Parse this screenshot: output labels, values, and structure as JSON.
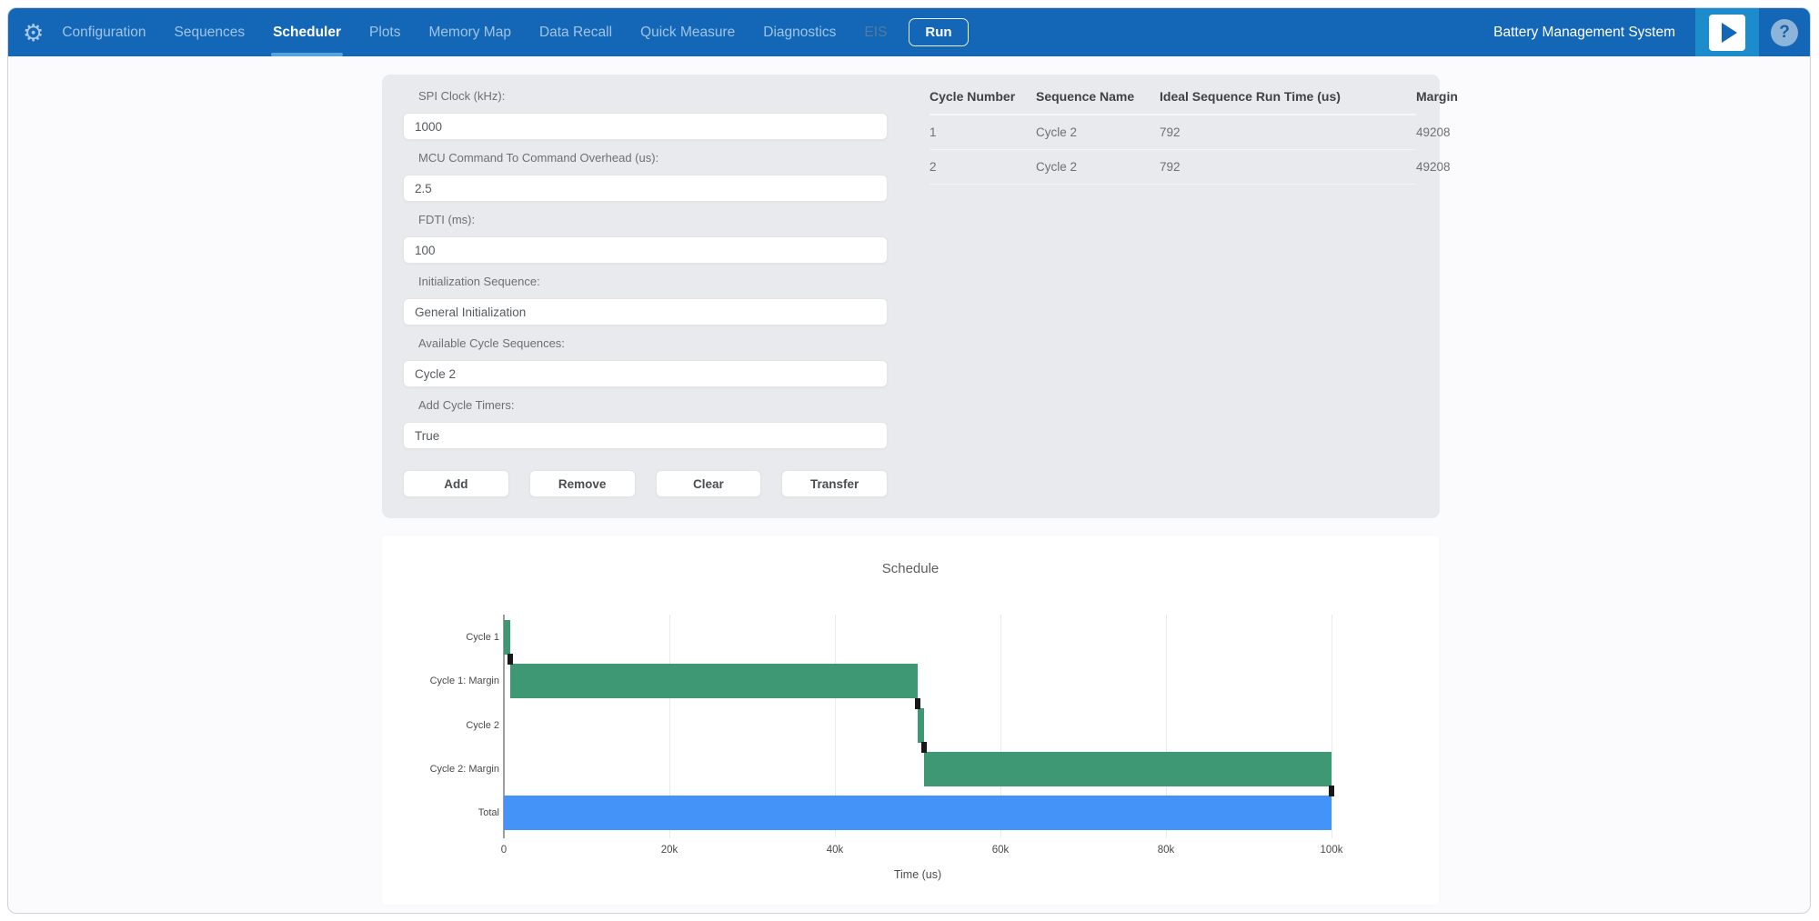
{
  "nav": {
    "items": [
      {
        "label": "Configuration",
        "state": "normal"
      },
      {
        "label": "Sequences",
        "state": "normal"
      },
      {
        "label": "Scheduler",
        "state": "active"
      },
      {
        "label": "Plots",
        "state": "normal"
      },
      {
        "label": "Memory Map",
        "state": "normal"
      },
      {
        "label": "Data Recall",
        "state": "normal"
      },
      {
        "label": "Quick Measure",
        "state": "normal"
      },
      {
        "label": "Diagnostics",
        "state": "normal"
      },
      {
        "label": "EIS",
        "state": "disabled"
      }
    ],
    "run_label": "Run",
    "app_title": "Battery Management System",
    "help_glyph": "?"
  },
  "form": {
    "fields": [
      {
        "name": "spi-clock",
        "label": "SPI Clock (kHz):",
        "value": "1000"
      },
      {
        "name": "mcu-command-overhead",
        "label": "MCU Command To Command Overhead (us):",
        "value": "2.5"
      },
      {
        "name": "fdti",
        "label": "FDTI (ms):",
        "value": "100"
      },
      {
        "name": "initialization-sequence",
        "label": "Initialization Sequence:",
        "value": "General Initialization"
      },
      {
        "name": "available-cycle-sequences",
        "label": "Available Cycle Sequences:",
        "value": "Cycle 2"
      },
      {
        "name": "add-cycle-timers",
        "label": "Add Cycle Timers:",
        "value": "True"
      }
    ],
    "buttons": [
      {
        "name": "add",
        "label": "Add"
      },
      {
        "name": "remove",
        "label": "Remove"
      },
      {
        "name": "clear",
        "label": "Clear"
      },
      {
        "name": "transfer",
        "label": "Transfer"
      }
    ]
  },
  "table": {
    "columns": [
      "Cycle Number",
      "Sequence Name",
      "Ideal Sequence Run Time (us)",
      "Margin"
    ],
    "rows": [
      [
        "1",
        "Cycle 2",
        "792",
        "49208"
      ],
      [
        "2",
        "Cycle 2",
        "792",
        "49208"
      ]
    ]
  },
  "chart_data": {
    "type": "bar",
    "orientation": "horizontal",
    "title": "Schedule",
    "xlabel": "Time (us)",
    "xlim": [
      0,
      100000
    ],
    "xticks": [
      {
        "value": 0,
        "label": "0"
      },
      {
        "value": 20000,
        "label": "20k"
      },
      {
        "value": 40000,
        "label": "40k"
      },
      {
        "value": 60000,
        "label": "60k"
      },
      {
        "value": 80000,
        "label": "80k"
      },
      {
        "value": 100000,
        "label": "100k"
      }
    ],
    "grid": true,
    "legend": false,
    "categories": [
      "Cycle 1",
      "Cycle 1: Margin",
      "Cycle 2",
      "Cycle 2: Margin",
      "Total"
    ],
    "bars": [
      {
        "category": "Cycle 1",
        "start": 0,
        "end": 792,
        "color": "#3d9873"
      },
      {
        "category": "Cycle 1: Margin",
        "start": 792,
        "end": 50000,
        "color": "#3d9873"
      },
      {
        "category": "Cycle 2",
        "start": 50000,
        "end": 50792,
        "color": "#3d9873"
      },
      {
        "category": "Cycle 2: Margin",
        "start": 50792,
        "end": 100000,
        "color": "#3d9873"
      },
      {
        "category": "Total",
        "start": 0,
        "end": 100000,
        "color": "#4493f8"
      }
    ],
    "connector_markers": [
      792,
      50000,
      50792,
      100000
    ],
    "marker_color": "#161819"
  },
  "colors": {
    "nav_background": "#1467b6",
    "nav_accent": "#1d8ccc",
    "active_underline": "#56a4da",
    "panel_background": "#e9eaed",
    "bar_green": "#3d9873",
    "bar_blue": "#4493f8"
  }
}
